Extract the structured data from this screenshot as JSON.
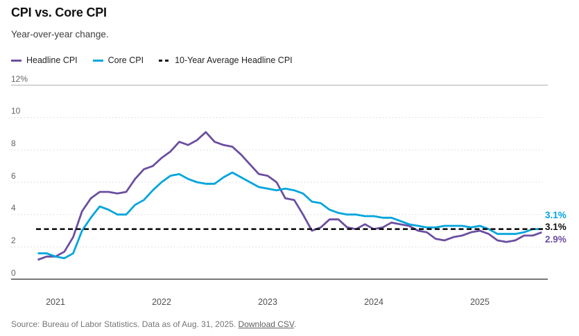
{
  "header": {
    "title": "CPI vs. Core CPI",
    "subtitle": "Year-over-year change."
  },
  "legend": {
    "items": [
      {
        "label": "Headline CPI",
        "color": "#6b4ea1",
        "style": "solid"
      },
      {
        "label": "Core CPI",
        "color": "#00a5dc",
        "style": "solid"
      },
      {
        "label": "10-Year Average Headline CPI",
        "color": "#111111",
        "style": "dashed"
      }
    ]
  },
  "chart_data": {
    "type": "line",
    "title": "CPI vs. Core CPI",
    "subtitle": "Year-over-year change.",
    "x_unit": "month",
    "x_start": "Nov 2020",
    "x_end": "Aug 2025",
    "x_tick_labels": [
      "2021",
      "2022",
      "2023",
      "2024",
      "2025"
    ],
    "y_tick_labels": [
      "12%",
      "10",
      "8",
      "6",
      "4",
      "2",
      "0"
    ],
    "ylim": [
      0,
      12
    ],
    "grid": "dotted horizontal lines at 2,4,6,8,10; solid at 12 and 0",
    "legend_position": "top-left",
    "series": [
      {
        "name": "Headline CPI",
        "color": "#6b4ea1",
        "end_value": 2.9,
        "values": [
          1.2,
          1.4,
          1.4,
          1.7,
          2.6,
          4.2,
          5.0,
          5.4,
          5.4,
          5.3,
          5.4,
          6.2,
          6.8,
          7.0,
          7.5,
          7.9,
          8.5,
          8.3,
          8.6,
          9.1,
          8.5,
          8.3,
          8.2,
          7.7,
          7.1,
          6.5,
          6.4,
          6.0,
          5.0,
          4.9,
          4.0,
          3.0,
          3.2,
          3.7,
          3.7,
          3.2,
          3.1,
          3.4,
          3.1,
          3.2,
          3.5,
          3.4,
          3.3,
          3.0,
          2.9,
          2.5,
          2.4,
          2.6,
          2.7,
          2.9,
          3.0,
          2.8,
          2.4,
          2.3,
          2.4,
          2.7,
          2.7,
          2.9
        ]
      },
      {
        "name": "Core CPI",
        "color": "#00a5dc",
        "end_value": 3.1,
        "values": [
          1.6,
          1.6,
          1.4,
          1.3,
          1.6,
          3.0,
          3.8,
          4.5,
          4.3,
          4.0,
          4.0,
          4.6,
          4.9,
          5.5,
          6.0,
          6.4,
          6.5,
          6.2,
          6.0,
          5.9,
          5.9,
          6.3,
          6.6,
          6.3,
          6.0,
          5.7,
          5.6,
          5.5,
          5.6,
          5.5,
          5.3,
          4.8,
          4.7,
          4.3,
          4.1,
          4.0,
          4.0,
          3.9,
          3.9,
          3.8,
          3.8,
          3.6,
          3.4,
          3.3,
          3.2,
          3.2,
          3.3,
          3.3,
          3.3,
          3.2,
          3.3,
          3.1,
          2.8,
          2.8,
          2.8,
          2.9,
          3.1,
          3.1
        ]
      }
    ],
    "reference_line": {
      "name": "10-Year Average Headline CPI",
      "value": 3.1,
      "color": "#111111",
      "style": "dashed"
    },
    "end_labels": [
      {
        "text": "3.1%",
        "series": "Core CPI",
        "color": "#00a5dc"
      },
      {
        "text": "3.1%",
        "series": "10-Year Average Headline CPI",
        "color": "#111111"
      },
      {
        "text": "2.9%",
        "series": "Headline CPI",
        "color": "#6b4ea1"
      }
    ]
  },
  "footer": {
    "source_prefix": "Source: Bureau of Labor Statistics. Data as of Aug. 31, 2025. ",
    "link_label": "Download CSV",
    "suffix": "."
  }
}
